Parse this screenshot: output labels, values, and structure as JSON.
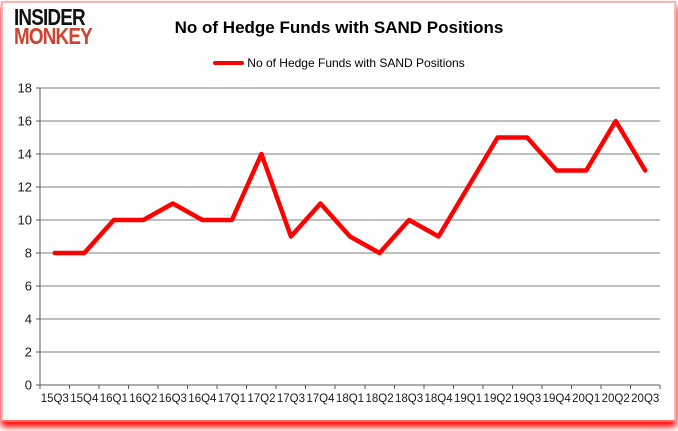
{
  "brand": {
    "line1": "INSIDER",
    "line2": "MONKEY",
    "color_black": "#111111",
    "color_red": "#cf4430"
  },
  "header": {
    "title": "No of Hedge Funds with SAND Positions"
  },
  "legend": {
    "label": "No of Hedge Funds with SAND Positions",
    "marker_color": "#ff0000"
  },
  "colors": {
    "series_red": "#ff0000",
    "grid_gray": "#7f7f7f",
    "axis_gray": "#595959",
    "label_color": "#1a1a1a",
    "frame_glow_red": "#ff0000"
  },
  "chart_data": {
    "type": "line",
    "title": "No of Hedge Funds with SAND Positions",
    "categories": [
      "15Q3",
      "15Q4",
      "16Q1",
      "16Q2",
      "16Q3",
      "16Q4",
      "17Q1",
      "17Q2",
      "17Q3",
      "17Q4",
      "18Q1",
      "18Q2",
      "18Q3",
      "18Q4",
      "19Q1",
      "19Q2",
      "19Q3",
      "19Q4",
      "20Q1",
      "20Q2",
      "20Q3"
    ],
    "series": [
      {
        "name": "No of Hedge Funds with SAND Positions",
        "color": "#ff0000",
        "values": [
          8,
          8,
          10,
          10,
          11,
          10,
          10,
          14,
          9,
          11,
          9,
          8,
          10,
          9,
          12,
          15,
          15,
          13,
          13,
          16,
          13
        ]
      }
    ],
    "xlabel": "",
    "ylabel": "",
    "ylim": [
      0,
      18
    ],
    "ytick_step": 2,
    "grid": "horizontal",
    "legend_position": "top"
  }
}
